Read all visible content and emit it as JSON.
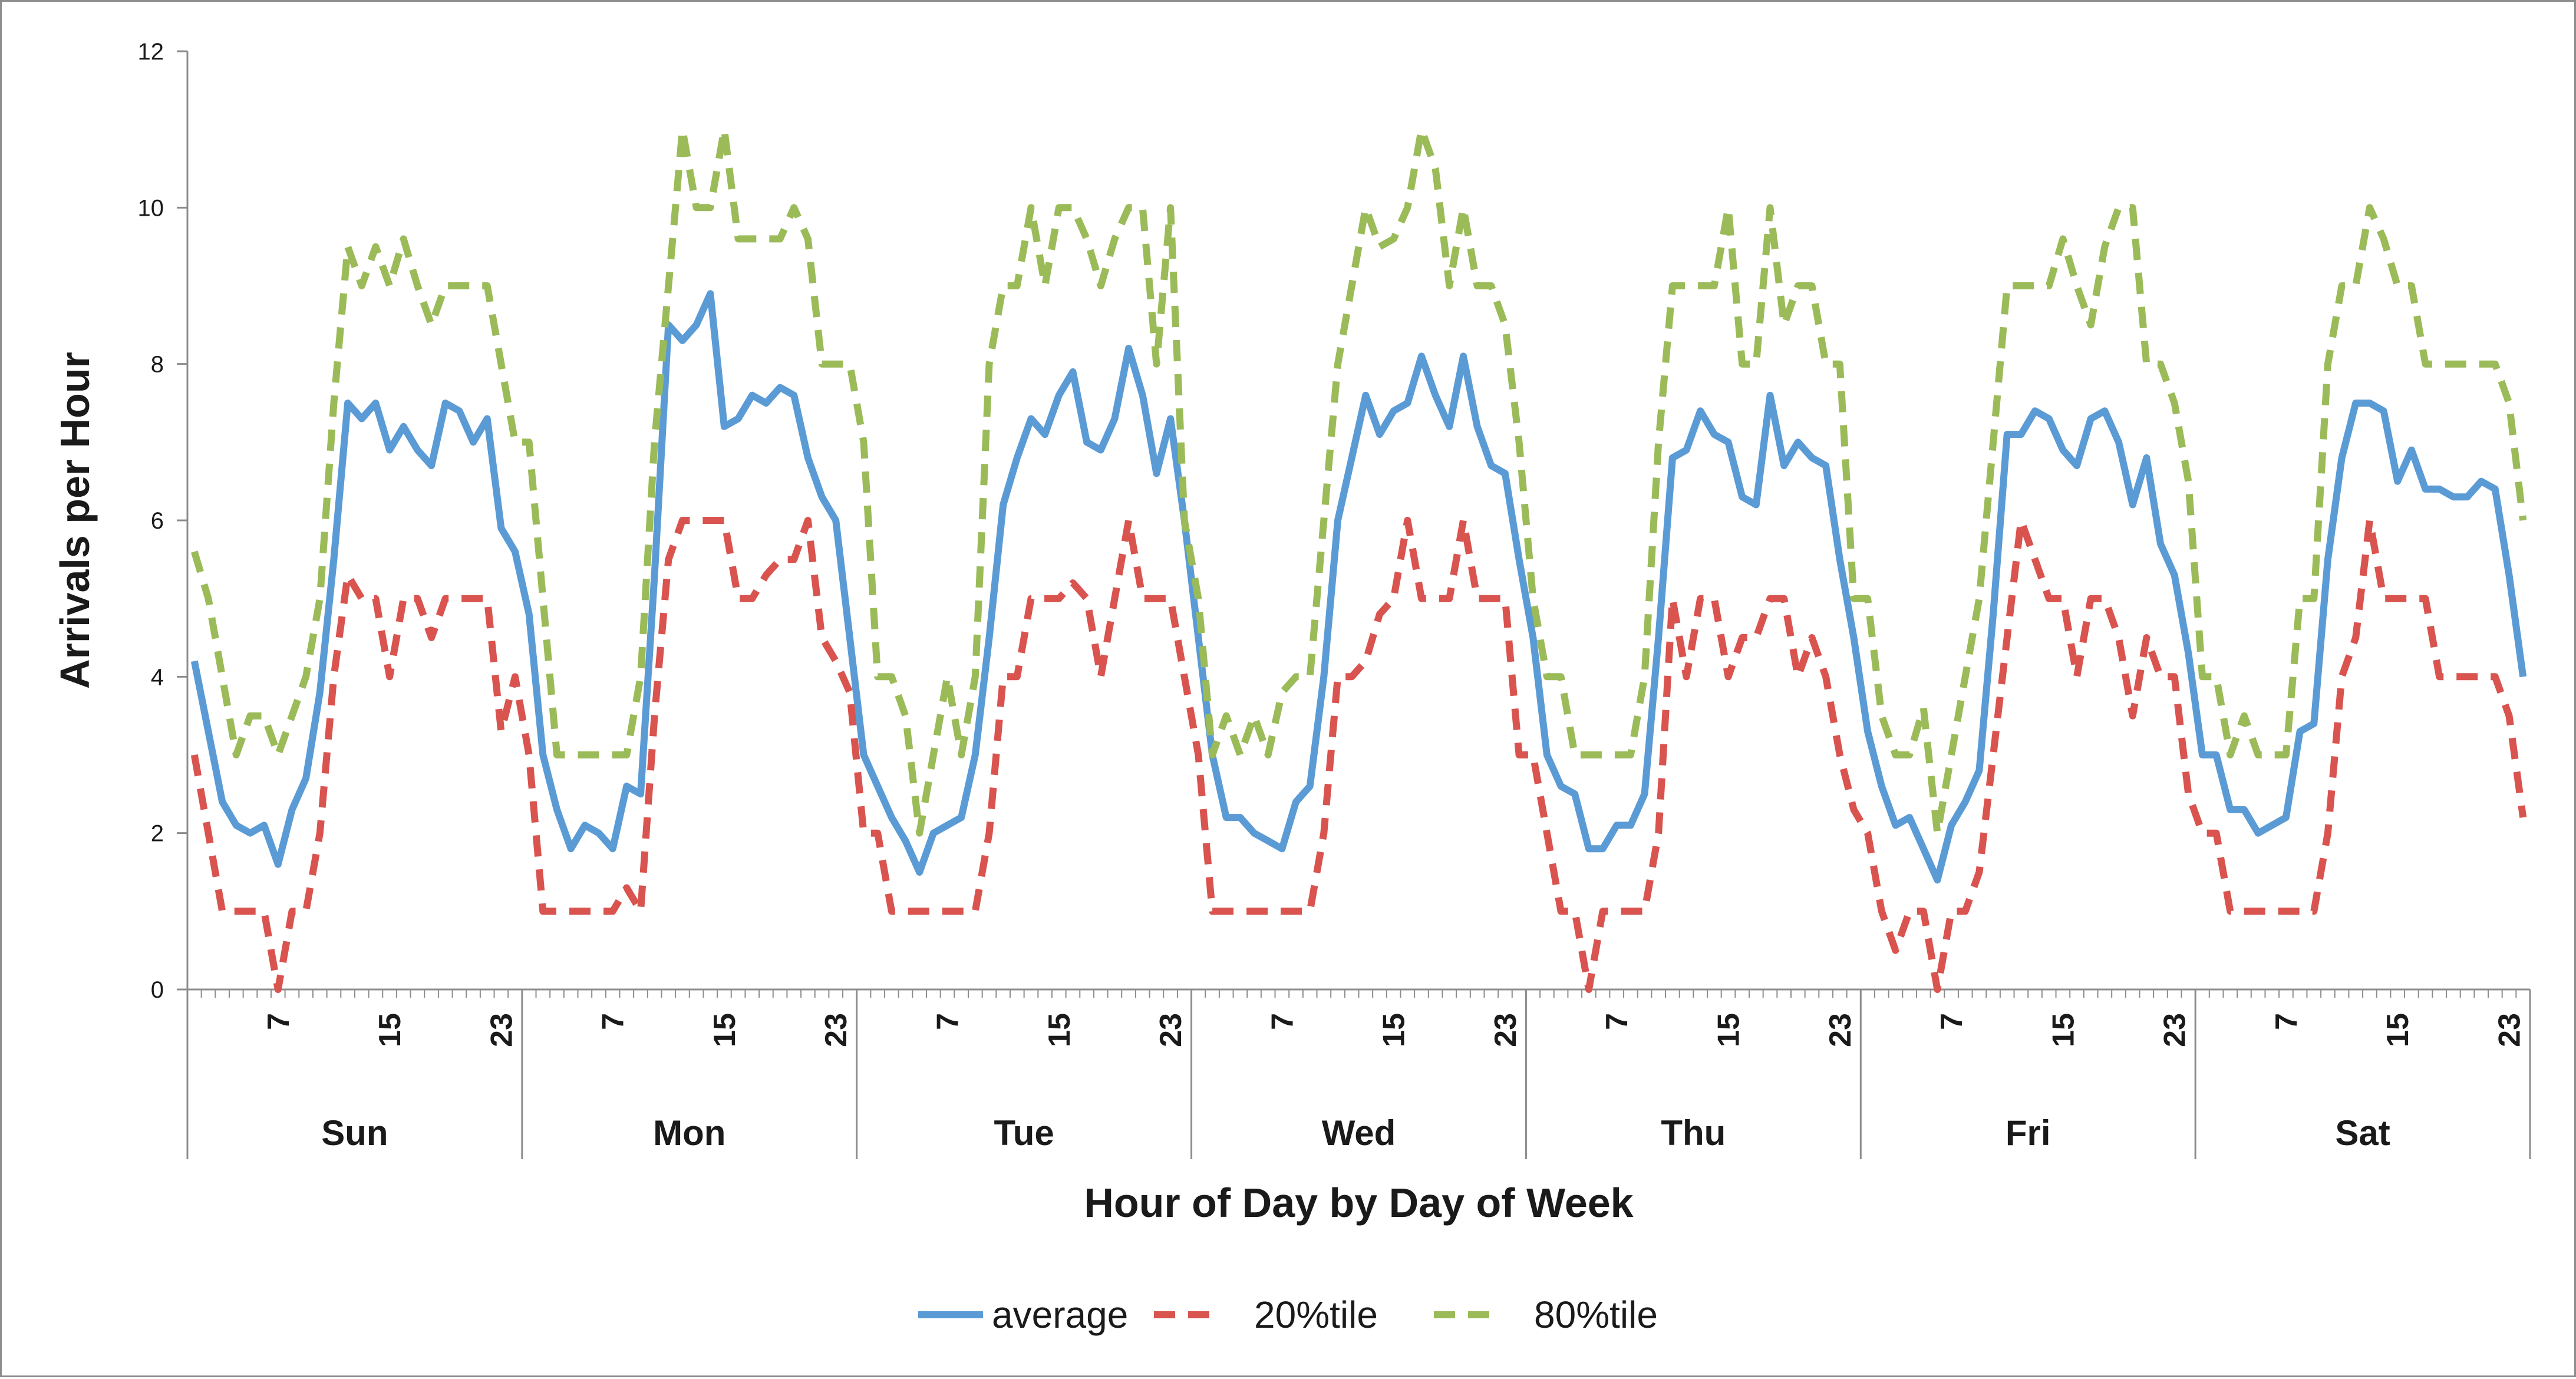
{
  "chart_data": {
    "type": "line",
    "title": "",
    "xlabel": "Hour of Day by Day of Week",
    "ylabel": "Arrivals per Hour",
    "ylim": [
      0,
      12
    ],
    "yticks": [
      0,
      2,
      4,
      6,
      8,
      10,
      12
    ],
    "hour_tick_labels": [
      "7",
      "15",
      "23"
    ],
    "days": [
      "Sun",
      "Mon",
      "Tue",
      "Wed",
      "Thu",
      "Fri",
      "Sat"
    ],
    "grid": false,
    "legend_position": "bottom-center",
    "series": [
      {
        "name": "average",
        "color": "#5b9bd5",
        "style": "solid",
        "values": [
          4.2,
          3.3,
          2.4,
          2.1,
          2.0,
          2.1,
          1.6,
          2.3,
          2.7,
          3.8,
          5.5,
          7.5,
          7.3,
          7.5,
          6.9,
          7.2,
          6.9,
          6.7,
          7.5,
          7.4,
          7.0,
          7.3,
          5.9,
          5.6,
          4.8,
          3.0,
          2.3,
          1.8,
          2.1,
          2.0,
          1.8,
          2.6,
          2.5,
          5.3,
          8.5,
          8.3,
          8.5,
          8.9,
          7.2,
          7.3,
          7.6,
          7.5,
          7.7,
          7.6,
          6.8,
          6.3,
          6.0,
          4.5,
          3.0,
          2.6,
          2.2,
          1.9,
          1.5,
          2.0,
          2.1,
          2.2,
          3.0,
          4.5,
          6.2,
          6.8,
          7.3,
          7.1,
          7.6,
          7.9,
          7.0,
          6.9,
          7.3,
          8.2,
          7.6,
          6.6,
          7.3,
          6.0,
          4.5,
          3.0,
          2.2,
          2.2,
          2.0,
          1.9,
          1.8,
          2.4,
          2.6,
          4.0,
          6.0,
          6.8,
          7.6,
          7.1,
          7.4,
          7.5,
          8.1,
          7.6,
          7.2,
          8.1,
          7.2,
          6.7,
          6.6,
          5.5,
          4.5,
          3.0,
          2.6,
          2.5,
          1.8,
          1.8,
          2.1,
          2.1,
          2.5,
          4.5,
          6.8,
          6.9,
          7.4,
          7.1,
          7.0,
          6.3,
          6.2,
          7.6,
          6.7,
          7.0,
          6.8,
          6.7,
          5.5,
          4.5,
          3.3,
          2.6,
          2.1,
          2.2,
          1.8,
          1.4,
          2.1,
          2.4,
          2.8,
          4.8,
          7.1,
          7.1,
          7.4,
          7.3,
          6.9,
          6.7,
          7.3,
          7.4,
          7.0,
          6.2,
          6.8,
          5.7,
          5.3,
          4.3,
          3.0,
          3.0,
          2.3,
          2.3,
          2.0,
          2.1,
          2.2,
          3.3,
          3.4,
          5.5,
          6.8,
          7.5,
          7.5,
          7.4,
          6.5,
          6.9,
          6.4,
          6.4,
          6.3,
          6.3,
          6.5,
          6.4,
          5.3,
          4.0
        ]
      },
      {
        "name": "20%tile",
        "color": "#d9534f",
        "style": "dashed",
        "values": [
          3.0,
          2.0,
          1.0,
          1.0,
          1.0,
          1.0,
          0.0,
          1.0,
          1.0,
          2.0,
          4.0,
          5.3,
          5.0,
          5.0,
          4.0,
          5.0,
          5.0,
          4.5,
          5.0,
          5.0,
          5.0,
          5.0,
          3.3,
          4.0,
          3.0,
          1.0,
          1.0,
          1.0,
          1.0,
          1.0,
          1.0,
          1.3,
          1.0,
          3.5,
          5.5,
          6.0,
          6.0,
          6.0,
          6.0,
          5.0,
          5.0,
          5.3,
          5.5,
          5.5,
          6.0,
          4.5,
          4.2,
          3.8,
          2.0,
          2.0,
          1.0,
          1.0,
          1.0,
          1.0,
          1.0,
          1.0,
          1.0,
          2.0,
          4.0,
          4.0,
          5.0,
          5.0,
          5.0,
          5.2,
          5.0,
          4.0,
          5.0,
          6.0,
          5.0,
          5.0,
          5.0,
          4.0,
          3.0,
          1.0,
          1.0,
          1.0,
          1.0,
          1.0,
          1.0,
          1.0,
          1.0,
          2.0,
          4.0,
          4.0,
          4.2,
          4.8,
          5.0,
          6.0,
          5.0,
          5.0,
          5.0,
          6.0,
          5.0,
          5.0,
          5.0,
          3.0,
          3.0,
          2.0,
          1.0,
          1.0,
          0.0,
          1.0,
          1.0,
          1.0,
          1.0,
          2.0,
          5.0,
          4.0,
          5.0,
          5.0,
          4.0,
          4.5,
          4.5,
          5.0,
          5.0,
          4.0,
          4.5,
          4.0,
          3.0,
          2.3,
          2.0,
          1.0,
          0.5,
          1.0,
          1.0,
          0.0,
          1.0,
          1.0,
          1.5,
          3.0,
          4.5,
          6.0,
          5.5,
          5.0,
          5.0,
          4.0,
          5.0,
          5.0,
          4.5,
          3.5,
          4.5,
          4.0,
          4.0,
          2.5,
          2.0,
          2.0,
          1.0,
          1.0,
          1.0,
          1.0,
          1.0,
          1.0,
          1.0,
          2.0,
          4.0,
          4.5,
          6.0,
          5.0,
          5.0,
          5.0,
          5.0,
          4.0,
          4.0,
          4.0,
          4.0,
          4.0,
          3.5,
          2.2
        ]
      },
      {
        "name": "80%tile",
        "color": "#9bbb59",
        "style": "dashed",
        "values": [
          5.6,
          5.0,
          4.0,
          3.0,
          3.5,
          3.5,
          3.0,
          3.5,
          4.0,
          5.0,
          7.5,
          9.5,
          9.0,
          9.5,
          9.0,
          9.6,
          9.0,
          8.5,
          9.0,
          9.0,
          9.0,
          9.0,
          8.0,
          7.0,
          7.0,
          5.0,
          3.0,
          3.0,
          3.0,
          3.0,
          3.0,
          3.0,
          4.0,
          7.0,
          9.0,
          11.0,
          10.0,
          10.0,
          11.0,
          9.6,
          9.6,
          9.6,
          9.6,
          10.0,
          9.6,
          8.0,
          8.0,
          8.0,
          7.0,
          4.0,
          4.0,
          3.5,
          2.0,
          3.0,
          4.0,
          3.0,
          4.0,
          8.0,
          9.0,
          9.0,
          10.0,
          9.0,
          10.0,
          10.0,
          9.6,
          9.0,
          9.6,
          10.0,
          10.0,
          8.0,
          10.0,
          6.0,
          5.0,
          3.0,
          3.5,
          3.0,
          3.5,
          3.0,
          3.8,
          4.0,
          4.0,
          6.0,
          8.0,
          9.0,
          10.0,
          9.5,
          9.6,
          10.0,
          11.0,
          10.5,
          9.0,
          10.0,
          9.0,
          9.0,
          8.5,
          7.0,
          5.0,
          4.0,
          4.0,
          3.0,
          3.0,
          3.0,
          3.0,
          3.0,
          4.0,
          7.0,
          9.0,
          9.0,
          9.0,
          9.0,
          10.0,
          8.0,
          8.0,
          10.0,
          8.5,
          9.0,
          9.0,
          8.0,
          8.0,
          5.0,
          5.0,
          3.5,
          3.0,
          3.0,
          3.6,
          2.0,
          3.0,
          4.0,
          5.0,
          7.0,
          9.0,
          9.0,
          9.0,
          9.0,
          9.6,
          9.0,
          8.5,
          9.5,
          10.0,
          10.0,
          8.0,
          8.0,
          7.5,
          6.5,
          4.0,
          4.0,
          3.0,
          3.5,
          3.0,
          3.0,
          3.0,
          5.0,
          5.0,
          8.0,
          9.0,
          9.0,
          10.0,
          9.6,
          9.0,
          9.0,
          8.0,
          8.0,
          8.0,
          8.0,
          8.0,
          8.0,
          7.5,
          6.0
        ]
      }
    ]
  }
}
